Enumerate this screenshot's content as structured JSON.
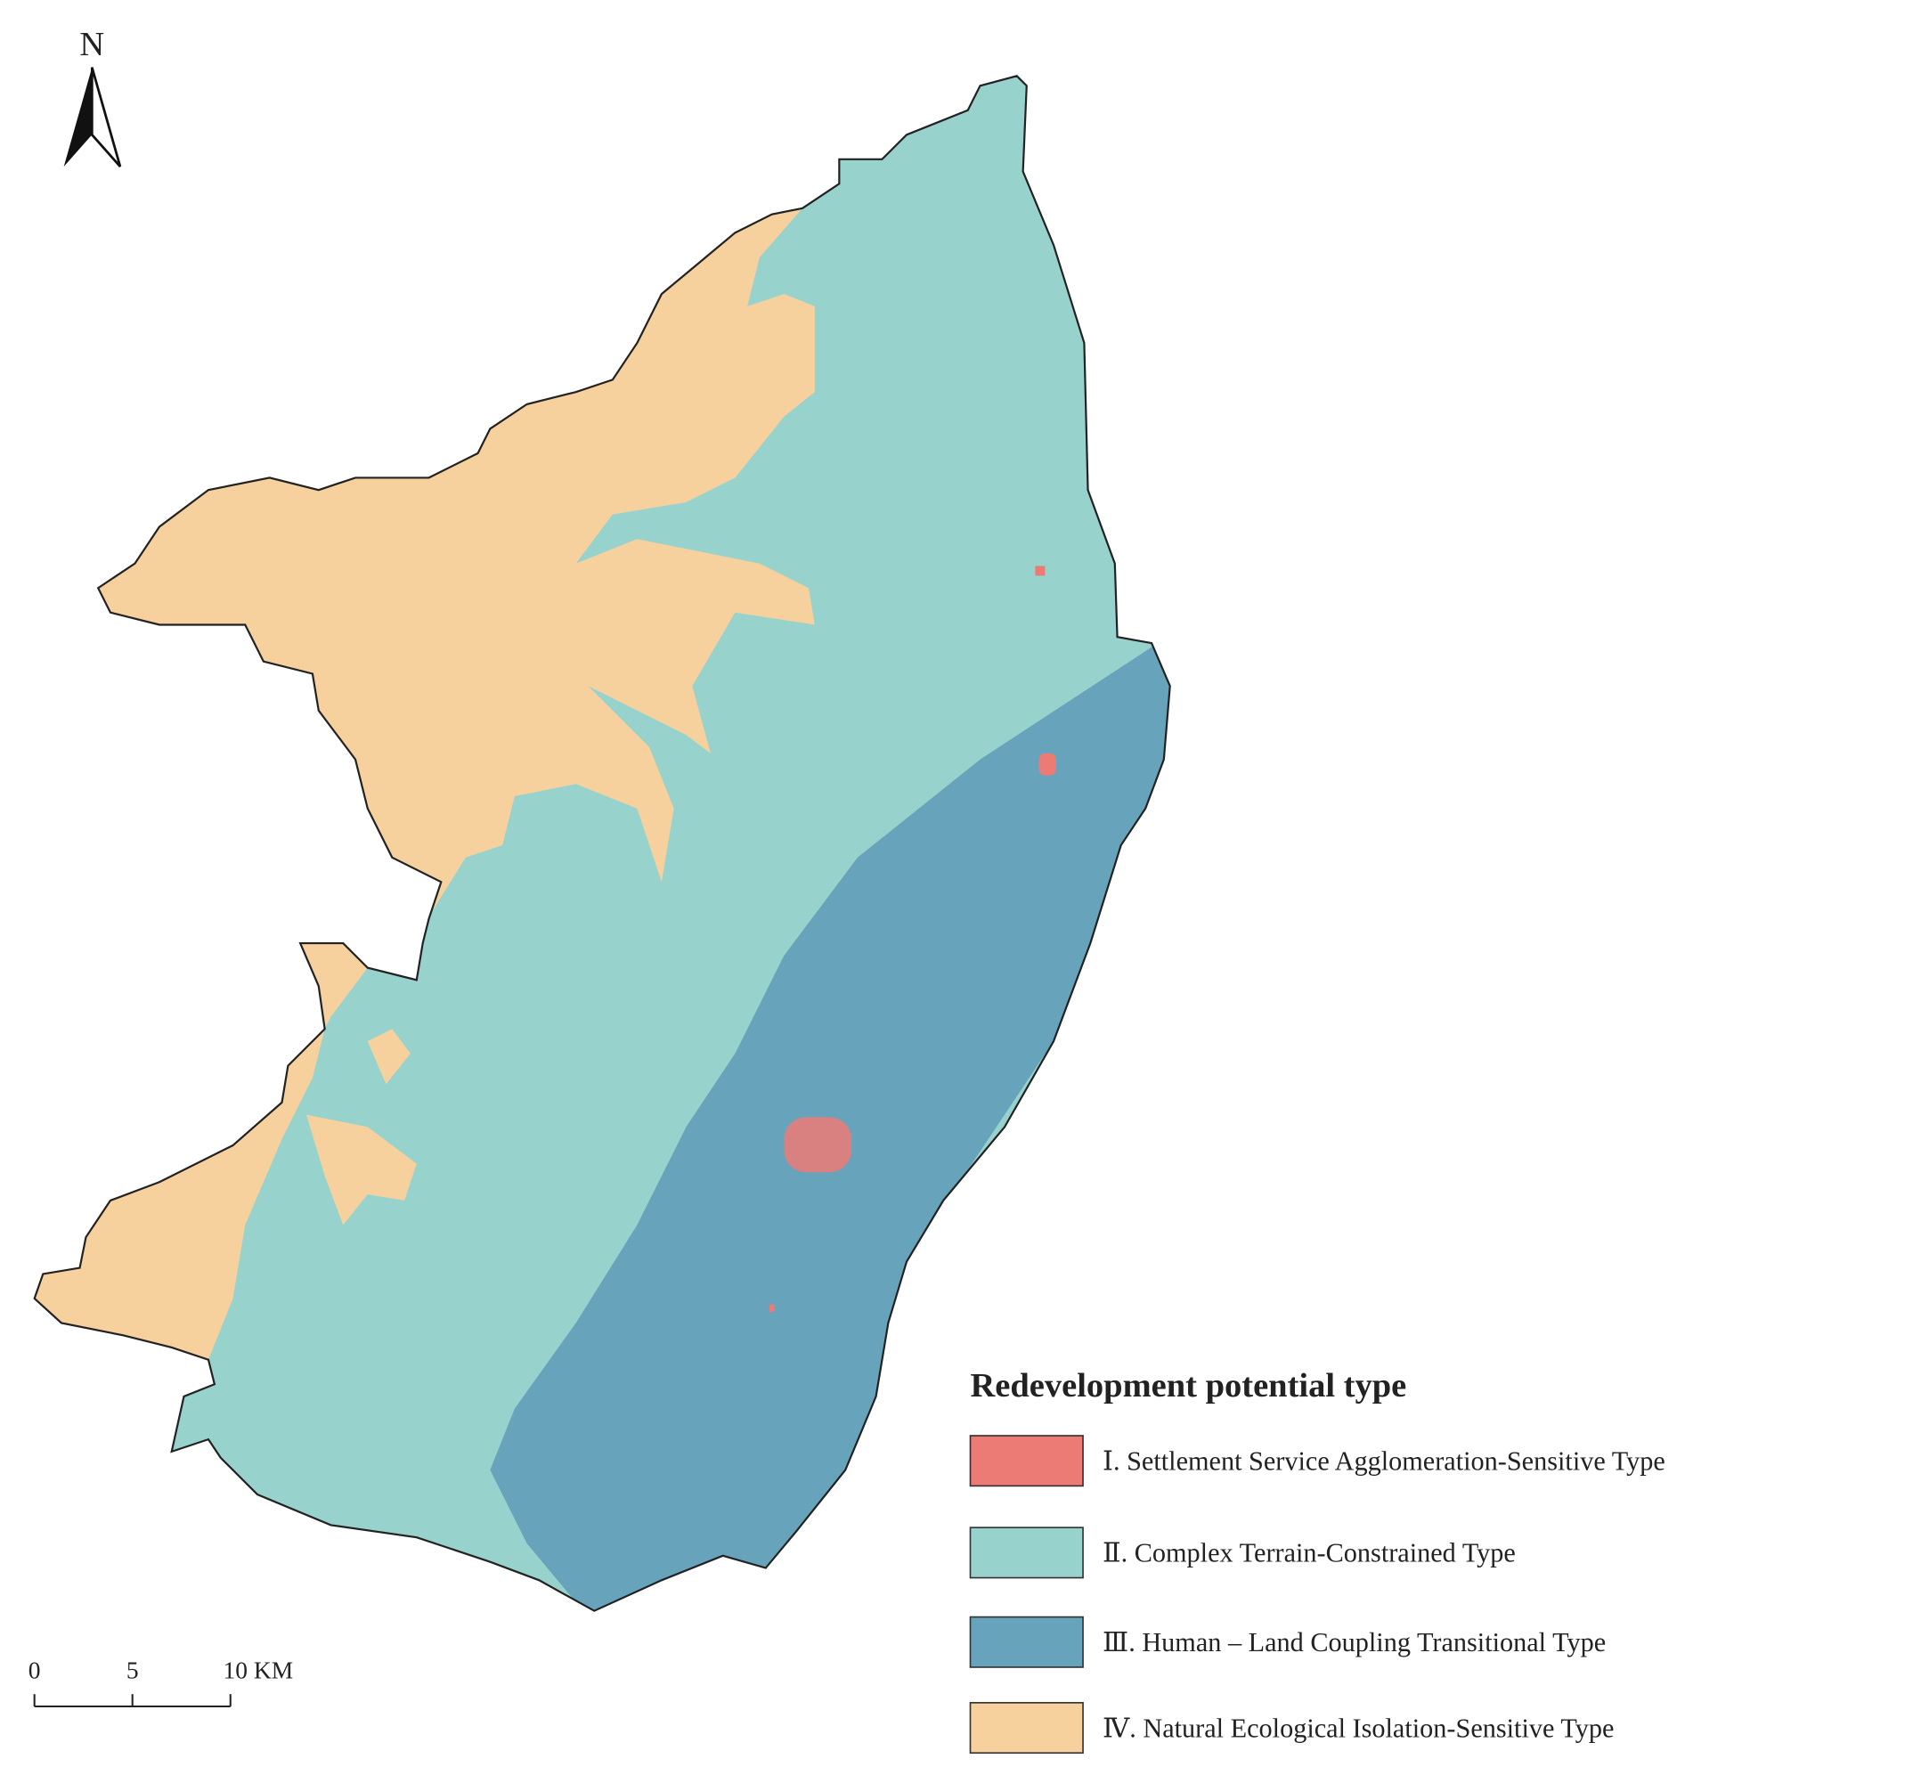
{
  "north": "N",
  "legend": {
    "title": "Redevelopment potential type",
    "items": [
      {
        "label": "Ⅰ. Settlement Service Agglomeration-Sensitive Type",
        "color": "#ec7b76"
      },
      {
        "label": "Ⅱ. Complex Terrain-Constrained Type",
        "color": "#98d2cd"
      },
      {
        "label": "Ⅲ. Human – Land Coupling Transitional Type",
        "color": "#68a3bc"
      },
      {
        "label": "Ⅳ. Natural Ecological Isolation-Sensitive Type",
        "color": "#f7d19d"
      }
    ]
  },
  "scale_bar": {
    "labels": [
      "0",
      "5",
      "10 KM"
    ]
  }
}
